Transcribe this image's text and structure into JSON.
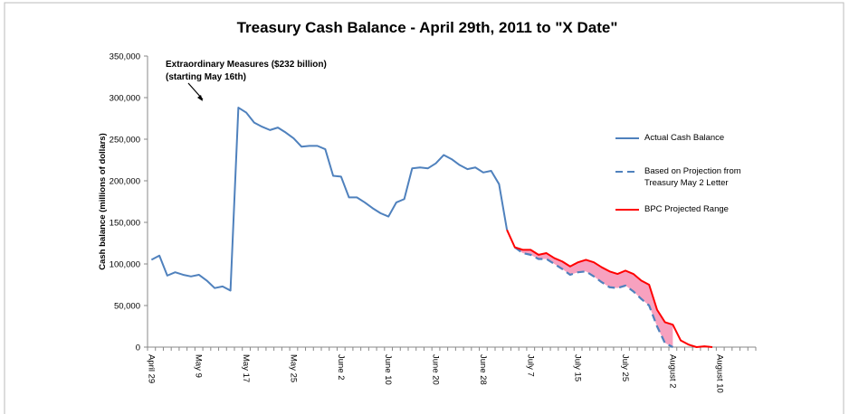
{
  "chart_data": {
    "type": "line",
    "title": "Treasury Cash Balance - April 29th, 2011 to \"X Date\"",
    "y_label": "Cash balance  (millions of dollars)",
    "annotations": [
      "Extraordinary Measures ($232 billion)",
      "(starting May 16th)"
    ],
    "categories": [
      "April 29",
      null,
      null,
      null,
      null,
      null,
      "May 9",
      null,
      null,
      null,
      null,
      null,
      "May 17",
      null,
      null,
      null,
      null,
      null,
      "May 25",
      null,
      null,
      null,
      null,
      null,
      "June 2",
      null,
      null,
      null,
      null,
      null,
      "June 10",
      null,
      null,
      null,
      null,
      null,
      "June 20",
      null,
      null,
      null,
      null,
      null,
      "June 28",
      null,
      null,
      null,
      null,
      null,
      "July 7",
      null,
      null,
      null,
      null,
      null,
      "July 15",
      null,
      null,
      null,
      null,
      null,
      "July 25",
      null,
      null,
      null,
      null,
      null,
      "August 2",
      null,
      null,
      null,
      null,
      null,
      "August 10",
      null,
      null,
      null,
      null
    ],
    "ylim": [
      0,
      350000
    ],
    "yticks": [
      0,
      {
        "value": 50000,
        "label": "50,000"
      },
      {
        "value": 100000,
        "label": "100,000"
      },
      {
        "value": 150000,
        "label": "150,000"
      },
      {
        "value": 200000,
        "label": "200,000"
      },
      {
        "value": 250000,
        "label": "250,000"
      },
      {
        "value": 300000,
        "label": "300,000"
      },
      {
        "value": 350000,
        "label": "350,000"
      }
    ],
    "series": [
      {
        "name": "Actual Cash Balance",
        "color": "#4f81bd",
        "dashed": false,
        "values": [
          105000,
          110000,
          86000,
          90000,
          87000,
          85000,
          87000,
          80000,
          71000,
          73000,
          68000,
          288000,
          282000,
          270000,
          265000,
          261000,
          264000,
          258000,
          251000,
          241000,
          242000,
          242000,
          238000,
          206000,
          205000,
          180000,
          180000,
          174000,
          167000,
          161000,
          157000,
          174000,
          178000,
          215000,
          216000,
          215000,
          221000,
          231000,
          226000,
          219000,
          214000,
          216000,
          210000,
          212000,
          196000,
          141000,
          null,
          null,
          null,
          null,
          null,
          null,
          null,
          null,
          null,
          null,
          null,
          null,
          null,
          null,
          null,
          null,
          null,
          null,
          null,
          null,
          null,
          null,
          null,
          null,
          null,
          null,
          null,
          null,
          null,
          null,
          null
        ]
      },
      {
        "name": "Based on Projection from Treasury May 2 Letter",
        "color": "#4f81bd",
        "dashed": true,
        "values": [
          null,
          null,
          null,
          null,
          null,
          null,
          null,
          null,
          null,
          null,
          null,
          null,
          null,
          null,
          null,
          null,
          null,
          null,
          null,
          null,
          null,
          null,
          null,
          null,
          null,
          null,
          null,
          null,
          null,
          null,
          null,
          null,
          null,
          null,
          null,
          null,
          null,
          null,
          null,
          null,
          null,
          null,
          null,
          null,
          null,
          null,
          120000,
          113000,
          111000,
          106000,
          106000,
          100000,
          94000,
          87000,
          90000,
          91000,
          85000,
          78000,
          72000,
          71000,
          74000,
          67000,
          58000,
          50000,
          25000,
          5000,
          0,
          null,
          null,
          null,
          null,
          null,
          null,
          null,
          null,
          null,
          null
        ]
      },
      {
        "name": "BPC Projected Range",
        "color": "#ff0000",
        "dashed": false,
        "values": [
          null,
          null,
          null,
          null,
          null,
          null,
          null,
          null,
          null,
          null,
          null,
          null,
          null,
          null,
          null,
          null,
          null,
          null,
          null,
          null,
          null,
          null,
          null,
          null,
          null,
          null,
          null,
          null,
          null,
          null,
          null,
          null,
          null,
          null,
          null,
          null,
          null,
          null,
          null,
          null,
          null,
          null,
          null,
          null,
          null,
          141000,
          120000,
          117000,
          117000,
          111000,
          113000,
          107000,
          103000,
          97000,
          102000,
          105000,
          102000,
          96000,
          91000,
          88000,
          92000,
          88000,
          80000,
          75000,
          45000,
          30000,
          27000,
          8000,
          3000,
          0,
          1000,
          0,
          null,
          null,
          null,
          null,
          null
        ]
      }
    ],
    "fill_between": [
      2,
      1
    ],
    "fill_color": "#f7a1bf",
    "legend": "right"
  }
}
